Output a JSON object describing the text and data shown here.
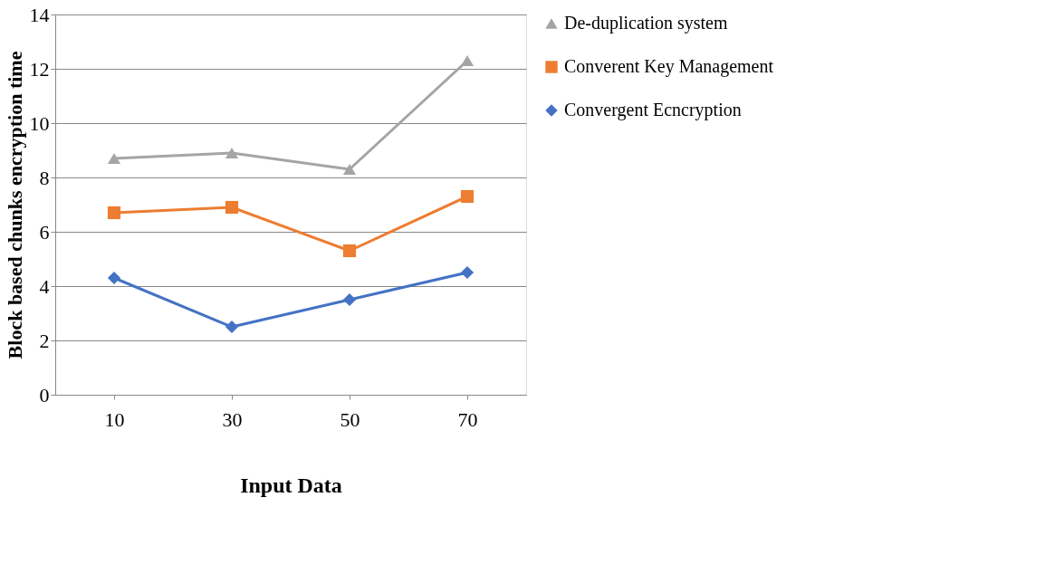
{
  "chart_data": {
    "type": "line",
    "xlabel": "Input Data",
    "ylabel": "Block based chunks encryption time",
    "categories": [
      "10",
      "30",
      "50",
      "70"
    ],
    "series": [
      {
        "name": "De-duplication system",
        "color": "#a5a5a5",
        "marker": "triangle",
        "values": [
          8.7,
          8.9,
          8.3,
          12.3
        ]
      },
      {
        "name": "Converent Key Management",
        "color": "#ed7d31",
        "marker": "square",
        "values": [
          6.7,
          6.9,
          5.3,
          7.3
        ]
      },
      {
        "name": "Convergent Ecncryption",
        "color": "#4472c4",
        "marker": "diamond",
        "values": [
          4.3,
          2.5,
          3.5,
          4.5
        ]
      }
    ],
    "ylim": [
      0,
      14
    ],
    "yticks": [
      0,
      2,
      4,
      6,
      8,
      10,
      12,
      14
    ],
    "grid": "y",
    "legend": "right",
    "line_style": "solid"
  }
}
